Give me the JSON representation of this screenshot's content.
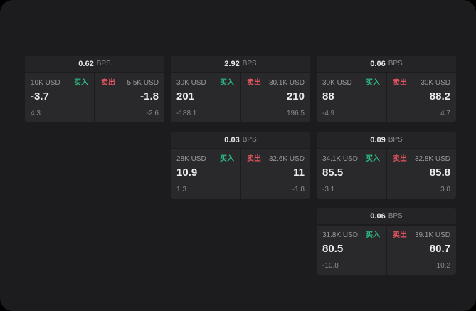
{
  "colors": {
    "buy": "#2ebd85",
    "sell": "#e35461",
    "background": "#1c1c1e",
    "card_header": "#242426",
    "panel": "#29292b"
  },
  "bps_unit": "BPS",
  "cards": [
    {
      "bps_value": "0.62",
      "bps_unit": "BPS",
      "buy": {
        "notional": "10K USD",
        "side_label": "买入",
        "price": "-3.7",
        "delta": "4.3"
      },
      "sell": {
        "side_label": "卖出",
        "notional": "5.5K USD",
        "price": "-1.8",
        "delta": "-2.6"
      }
    },
    {
      "bps_value": "2.92",
      "bps_unit": "BPS",
      "buy": {
        "notional": "30K USD",
        "side_label": "买入",
        "price": "201",
        "delta": "-188.1"
      },
      "sell": {
        "side_label": "卖出",
        "notional": "30.1K USD",
        "price": "210",
        "delta": "196.5"
      }
    },
    {
      "bps_value": "0.06",
      "bps_unit": "BPS",
      "buy": {
        "notional": "30K USD",
        "side_label": "买入",
        "price": "88",
        "delta": "-4.9"
      },
      "sell": {
        "side_label": "卖出",
        "notional": "30K USD",
        "price": "88.2",
        "delta": "4.7"
      }
    },
    {
      "bps_value": "0.03",
      "bps_unit": "BPS",
      "buy": {
        "notional": "28K USD",
        "side_label": "买入",
        "price": "10.9",
        "delta": "1.3"
      },
      "sell": {
        "side_label": "卖出",
        "notional": "32.6K USD",
        "price": "11",
        "delta": "-1.8"
      }
    },
    {
      "bps_value": "0.09",
      "bps_unit": "BPS",
      "buy": {
        "notional": "34.1K USD",
        "side_label": "买入",
        "price": "85.5",
        "delta": "-3.1"
      },
      "sell": {
        "side_label": "卖出",
        "notional": "32.8K USD",
        "price": "85.8",
        "delta": "3.0"
      }
    },
    {
      "bps_value": "0.06",
      "bps_unit": "BPS",
      "buy": {
        "notional": "31.8K USD",
        "side_label": "买入",
        "price": "80.5",
        "delta": "-10.8"
      },
      "sell": {
        "side_label": "卖出",
        "notional": "39.1K USD",
        "price": "80.7",
        "delta": "10.2"
      }
    }
  ]
}
